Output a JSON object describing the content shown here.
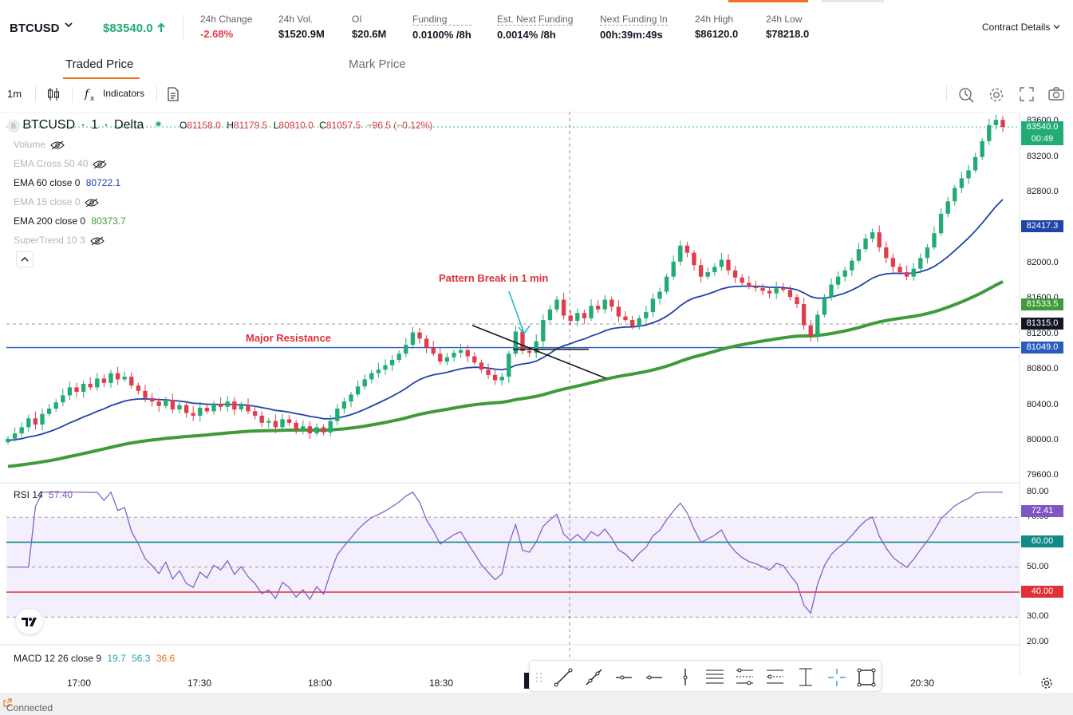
{
  "ticker": {
    "symbol": "BTCUSD",
    "price": "$83540.0",
    "stats": [
      {
        "label": "24h Change",
        "value": "-2.68%",
        "negative": true,
        "dotted": false
      },
      {
        "label": "24h Vol.",
        "value": "$1520.9M",
        "negative": false,
        "dotted": false
      },
      {
        "label": "OI",
        "value": "$20.6M",
        "negative": false,
        "dotted": false
      },
      {
        "label": "Funding",
        "value": "0.0100% /8h",
        "negative": false,
        "dotted": true
      },
      {
        "label": "Est. Next Funding",
        "value": "0.0014% /8h",
        "negative": false,
        "dotted": true
      },
      {
        "label": "Next Funding In",
        "value": "00h:39m:49s",
        "negative": false,
        "dotted": true
      },
      {
        "label": "24h High",
        "value": "$86120.0",
        "negative": false,
        "dotted": false
      },
      {
        "label": "24h Low",
        "value": "$78218.0",
        "negative": false,
        "dotted": false
      }
    ],
    "contract_details": "Contract Details"
  },
  "price_tabs": {
    "traded": "Traded Price",
    "mark": "Mark Price"
  },
  "toolbar": {
    "interval": "1m",
    "indicators": "Indicators"
  },
  "legend": {
    "symbol": "BTCUSD",
    "interval": "1",
    "exchange": "Delta",
    "o_label": "O",
    "o": "81158.0",
    "h_label": "H",
    "h": "81179.5",
    "l_label": "L",
    "l": "80910.0",
    "c_label": "C",
    "c": "81057.5",
    "change": "−96.5 (−0.12%)",
    "volume": "Volume",
    "ema_cross": "EMA Cross 50 40",
    "ema60": "EMA 60 close 0",
    "ema60_val": "80722.1",
    "ema15": "EMA 15 close 0",
    "ema200": "EMA 200 close 0",
    "ema200_val": "80373.7",
    "supertrend": "SuperTrend 10 3"
  },
  "annotations": {
    "pattern": "Pattern Break in 1 min",
    "resistance": "Major Resistance"
  },
  "price_axis": {
    "ticks": [
      "83600.0",
      "83200.0",
      "82800.0",
      "82400.0",
      "82000.0",
      "81600.0",
      "81200.0",
      "80800.0",
      "80400.0",
      "80000.0",
      "79600.0"
    ],
    "badges": [
      {
        "text": "83540.0",
        "sub": "00:49",
        "color": "#22ab74"
      },
      {
        "text": "82417.3",
        "color": "#2044a8"
      },
      {
        "text": "81533.5",
        "color": "#3f9a3a"
      },
      {
        "text": "81315.0",
        "color": "#131722"
      },
      {
        "text": "81049.0",
        "color": "#2a5cbf"
      }
    ]
  },
  "rsi": {
    "label": "RSI 14",
    "value": "57.40",
    "ticks": [
      "80.00",
      "70.00",
      "60.00",
      "50.00",
      "40.00",
      "30.00",
      "20.00"
    ],
    "badges": [
      {
        "text": "72.41",
        "color": "#7e57c2"
      },
      {
        "text": "60.00",
        "color": "#138a8a"
      },
      {
        "text": "40.00",
        "color": "#e0303a"
      }
    ]
  },
  "macd": {
    "label": "MACD 12 26 close 9",
    "v1": "19.7",
    "v2": "56.3",
    "v3": "36.6"
  },
  "time_axis": [
    "17:00",
    "17:30",
    "18:00",
    "18:30",
    "20:30"
  ],
  "status": "Connected",
  "chart_data": {
    "type": "candlestick",
    "symbol": "BTCUSD",
    "interval": "1m",
    "y_range": [
      79600,
      83600
    ],
    "last": 83540.0,
    "resistance_level": 81049.0,
    "rsi_levels": [
      60,
      40
    ],
    "closes": [
      80020,
      80080,
      80150,
      80250,
      80180,
      80300,
      80360,
      80430,
      80510,
      80600,
      80550,
      80640,
      80600,
      80700,
      80650,
      80760,
      80690,
      80720,
      80620,
      80560,
      80480,
      80440,
      80390,
      80460,
      80350,
      80400,
      80310,
      80280,
      80370,
      80330,
      80410,
      80380,
      80440,
      80350,
      80400,
      80330,
      80280,
      80200,
      80220,
      80150,
      80240,
      80200,
      80120,
      80160,
      80080,
      80150,
      80090,
      80220,
      80360,
      80440,
      80520,
      80610,
      80690,
      80760,
      80800,
      80850,
      80910,
      80980,
      81080,
      81220,
      81150,
      81050,
      80980,
      80890,
      80940,
      80990,
      81020,
      80950,
      80880,
      80800,
      80740,
      80680,
      80720,
      80980,
      81230,
      81010,
      80990,
      81120,
      81360,
      81480,
      81590,
      81410,
      81350,
      81440,
      81380,
      81520,
      81480,
      81590,
      81510,
      81400,
      81360,
      81290,
      81380,
      81450,
      81600,
      81680,
      81850,
      82020,
      82200,
      82120,
      81980,
      81850,
      81900,
      81960,
      82040,
      81920,
      81840,
      81780,
      81740,
      81720,
      81690,
      81660,
      81720,
      81700,
      81620,
      81540,
      81300,
      81180,
      81420,
      81620,
      81760,
      81850,
      81920,
      82030,
      82160,
      82280,
      82350,
      82180,
      82060,
      81960,
      81900,
      81850,
      81940,
      82060,
      82180,
      82340,
      82560,
      82700,
      82850,
      82960,
      83050,
      83200,
      83380,
      83560,
      83620,
      83540
    ]
  }
}
